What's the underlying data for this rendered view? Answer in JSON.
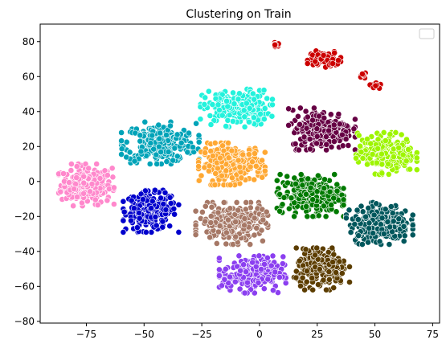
{
  "chart_data": {
    "type": "scatter",
    "title": "Clustering on Train",
    "xlabel": "",
    "ylabel": "",
    "xlim": [
      -95,
      78
    ],
    "ylim": [
      -81,
      90
    ],
    "xticks": [
      -75,
      -50,
      -25,
      0,
      25,
      50,
      75
    ],
    "yticks": [
      -80,
      -60,
      -40,
      -20,
      0,
      20,
      40,
      60,
      80
    ],
    "grid": false,
    "legend": {
      "position": "top-right",
      "entries": []
    },
    "clusters": [
      {
        "color": "#ff88cc",
        "center": [
          -75,
          -2
        ],
        "spread": [
          10,
          10
        ],
        "count": 240
      },
      {
        "color": "#0000cc",
        "center": [
          -47,
          -17
        ],
        "spread": [
          10,
          10
        ],
        "count": 230
      },
      {
        "color": "#00a3b8",
        "center": [
          -43,
          22
        ],
        "spread": [
          14,
          10
        ],
        "count": 260
      },
      {
        "color": "#22f2dc",
        "center": [
          -10,
          42
        ],
        "spread": [
          13,
          9
        ],
        "count": 230
      },
      {
        "color": "#ffa833",
        "center": [
          -12,
          10
        ],
        "spread": [
          12,
          10
        ],
        "count": 250
      },
      {
        "color": "#a67866",
        "center": [
          -12,
          -24
        ],
        "spread": [
          13,
          10
        ],
        "count": 250
      },
      {
        "color": "#8b3ff0",
        "center": [
          -3,
          -53
        ],
        "spread": [
          12,
          9
        ],
        "count": 230
      },
      {
        "color": "#660044",
        "center": [
          27,
          30
        ],
        "spread": [
          12,
          10
        ],
        "count": 260
      },
      {
        "color": "#007a00",
        "center": [
          22,
          -8
        ],
        "spread": [
          12,
          10
        ],
        "count": 250
      },
      {
        "color": "#9ef500",
        "center": [
          55,
          16
        ],
        "spread": [
          11,
          10
        ],
        "count": 240
      },
      {
        "color": "#00575c",
        "center": [
          52,
          -24
        ],
        "spread": [
          12,
          10
        ],
        "count": 240
      },
      {
        "color": "#5c3d00",
        "center": [
          27,
          -50
        ],
        "spread": [
          10,
          10
        ],
        "count": 220
      },
      {
        "color": "#cc0000",
        "center": [
          28,
          70
        ],
        "spread": [
          6,
          4
        ],
        "count": 90
      },
      {
        "color": "#cc0000",
        "center": [
          7,
          79
        ],
        "spread": [
          2,
          2
        ],
        "count": 16
      },
      {
        "color": "#cc0000",
        "center": [
          45,
          61
        ],
        "spread": [
          1.5,
          1.5
        ],
        "count": 10
      },
      {
        "color": "#cc0000",
        "center": [
          50,
          55
        ],
        "spread": [
          2,
          1.5
        ],
        "count": 12
      }
    ]
  }
}
